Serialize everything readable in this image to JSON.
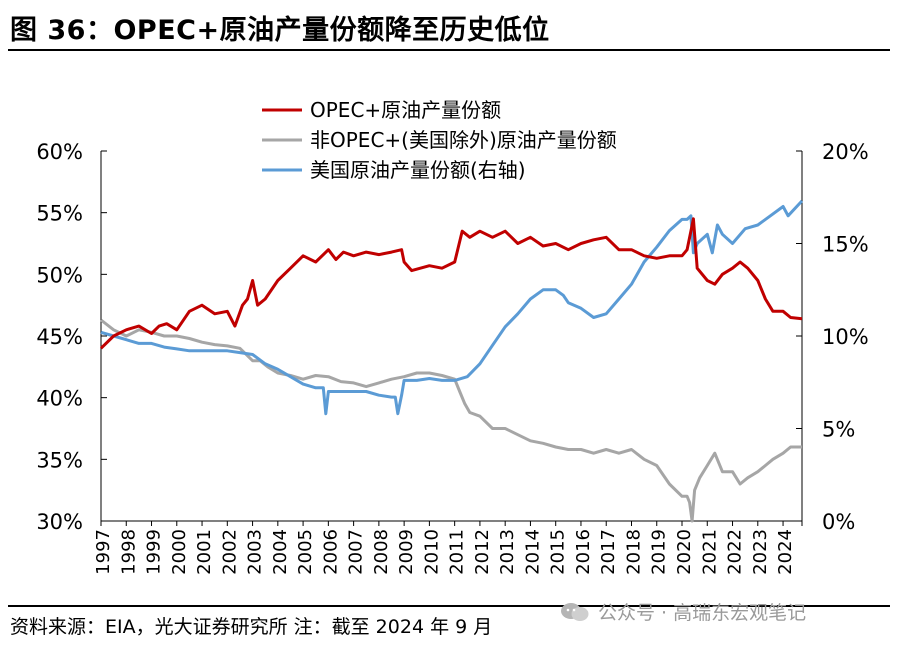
{
  "header": {
    "title": "图 36：OPEC+原油产量份额降至历史低位"
  },
  "footer": {
    "source": "资料来源：EIA，光大证券研究所 注：截至 2024 年 9 月",
    "watermark": "公众号 · 高瑞东宏观笔记"
  },
  "chart_data": {
    "type": "line",
    "title": "",
    "x": [
      "1997",
      "1998",
      "1999",
      "2000",
      "2001",
      "2002",
      "2003",
      "2004",
      "2005",
      "2006",
      "2007",
      "2008",
      "2009",
      "2010",
      "2011",
      "2012",
      "2013",
      "2014",
      "2015",
      "2016",
      "2017",
      "2018",
      "2019",
      "2020",
      "2021",
      "2022",
      "2023",
      "2024"
    ],
    "x_range": [
      1997,
      2024.75
    ],
    "ylim_left": [
      30,
      60
    ],
    "ylim_right": [
      0,
      20
    ],
    "yticks_left": [
      "60%",
      "55%",
      "50%",
      "45%",
      "40%",
      "35%",
      "30%"
    ],
    "yticks_right": [
      "20%",
      "15%",
      "10%",
      "5%",
      "0%"
    ],
    "legend": [
      "OPEC+原油产量份额",
      "非OPEC+(美国除外)原油产量份额",
      "美国原油产量份额(右轴)"
    ],
    "legend_position": "top-center",
    "colors": {
      "opec": "#c00000",
      "non_opec": "#a6a6a6",
      "us": "#5b9bd5"
    },
    "series": [
      {
        "name": "OPEC+原油产量份额",
        "axis": "left",
        "x": [
          1997,
          1997.5,
          1998,
          1998.5,
          1999,
          1999.3,
          1999.6,
          2000,
          2000.5,
          2001,
          2001.5,
          2002,
          2002.3,
          2002.6,
          2002.8,
          2003,
          2003.2,
          2003.5,
          2004,
          2004.5,
          2005,
          2005.5,
          2006,
          2006.3,
          2006.6,
          2007,
          2007.5,
          2008,
          2008.5,
          2008.9,
          2009,
          2009.3,
          2010,
          2010.5,
          2011,
          2011.3,
          2011.6,
          2012,
          2012.5,
          2013,
          2013.5,
          2014,
          2014.5,
          2015,
          2015.5,
          2016,
          2016.5,
          2017,
          2017.5,
          2018,
          2018.5,
          2019,
          2019.5,
          2020,
          2020.2,
          2020.35,
          2020.45,
          2020.6,
          2021,
          2021.3,
          2021.6,
          2022,
          2022.3,
          2022.6,
          2023,
          2023.3,
          2023.6,
          2024,
          2024.3,
          2024.75
        ],
        "values": [
          44,
          45,
          45.5,
          45.8,
          45.2,
          45.8,
          46,
          45.5,
          47,
          47.5,
          46.8,
          47,
          45.8,
          47.5,
          48,
          49.5,
          47.5,
          48,
          49.5,
          50.5,
          51.5,
          51,
          52,
          51.2,
          51.8,
          51.5,
          51.8,
          51.6,
          51.8,
          52,
          51,
          50.3,
          50.7,
          50.5,
          51,
          53.5,
          53,
          53.5,
          53,
          53.5,
          52.5,
          53,
          52.3,
          52.5,
          52,
          52.5,
          52.8,
          53,
          52,
          52,
          51.5,
          51.3,
          51.5,
          51.5,
          52,
          53.5,
          54.5,
          50.5,
          49.5,
          49.2,
          50,
          50.5,
          51,
          50.5,
          49.5,
          48,
          47,
          47,
          46.5,
          46.4
        ]
      },
      {
        "name": "非OPEC+(美国除外)原油产量份额",
        "axis": "left",
        "x": [
          1997,
          1997.5,
          1998,
          1998.5,
          1999,
          1999.5,
          2000,
          2000.5,
          2001,
          2001.5,
          2002,
          2002.5,
          2003,
          2003.3,
          2003.6,
          2004,
          2004.5,
          2005,
          2005.5,
          2006,
          2006.5,
          2007,
          2007.5,
          2008,
          2008.5,
          2009,
          2009.5,
          2010,
          2010.5,
          2011,
          2011.2,
          2011.4,
          2011.6,
          2012,
          2012.5,
          2013,
          2013.5,
          2014,
          2014.5,
          2015,
          2015.5,
          2016,
          2016.5,
          2017,
          2017.5,
          2018,
          2018.5,
          2019,
          2019.5,
          2020,
          2020.2,
          2020.3,
          2020.4,
          2020.5,
          2020.7,
          2021,
          2021.3,
          2021.6,
          2022,
          2022.3,
          2022.6,
          2023,
          2023.3,
          2023.6,
          2024,
          2024.3,
          2024.75
        ],
        "values": [
          46.3,
          45.5,
          45,
          45.5,
          45.3,
          45,
          45,
          44.8,
          44.5,
          44.3,
          44.2,
          44,
          43,
          43,
          42.5,
          42,
          41.8,
          41.5,
          41.8,
          41.7,
          41.3,
          41.2,
          40.9,
          41.2,
          41.5,
          41.7,
          42,
          42,
          41.8,
          41.5,
          40.5,
          39.5,
          38.8,
          38.5,
          37.5,
          37.5,
          37,
          36.5,
          36.3,
          36,
          35.8,
          35.8,
          35.5,
          35.8,
          35.5,
          35.8,
          35,
          34.5,
          33,
          32,
          32,
          31.5,
          30,
          32.5,
          33.5,
          34.5,
          35.5,
          34,
          34,
          33,
          33.5,
          34,
          34.5,
          35,
          35.5,
          36,
          36
        ]
      },
      {
        "name": "美国原油产量份额(右轴)",
        "axis": "right",
        "x": [
          1997,
          1997.5,
          1998,
          1998.5,
          1999,
          1999.5,
          2000,
          2000.5,
          2001,
          2001.5,
          2002,
          2002.5,
          2003,
          2003.5,
          2004,
          2004.5,
          2005,
          2005.5,
          2005.8,
          2005.9,
          2006,
          2006.5,
          2007,
          2007.5,
          2008,
          2008.5,
          2008.65,
          2008.75,
          2008.9,
          2009,
          2009.5,
          2010,
          2010.5,
          2011,
          2011.5,
          2012,
          2012.5,
          2013,
          2013.5,
          2014,
          2014.5,
          2015,
          2015.3,
          2015.5,
          2016,
          2016.5,
          2017,
          2017.5,
          2018,
          2018.5,
          2019,
          2019.5,
          2020,
          2020.2,
          2020.35,
          2020.45,
          2020.6,
          2021,
          2021.2,
          2021.4,
          2021.6,
          2022,
          2022.5,
          2023,
          2023.5,
          2024,
          2024.2,
          2024.75
        ],
        "values": [
          10.2,
          10,
          9.8,
          9.6,
          9.6,
          9.4,
          9.3,
          9.2,
          9.2,
          9.2,
          9.2,
          9.1,
          9,
          8.5,
          8.2,
          7.8,
          7.4,
          7.2,
          7.2,
          5.8,
          7,
          7,
          7,
          7,
          6.8,
          6.7,
          6.7,
          5.8,
          6.8,
          7.6,
          7.6,
          7.7,
          7.6,
          7.6,
          7.8,
          8.5,
          9.5,
          10.5,
          11.2,
          12,
          12.5,
          12.5,
          12.2,
          11.8,
          11.5,
          11,
          11.2,
          12,
          12.8,
          14,
          14.8,
          15.7,
          16.3,
          16.3,
          16.5,
          14.5,
          15,
          15.5,
          14.5,
          16,
          15.5,
          15,
          15.8,
          16,
          16.5,
          17,
          16.5,
          17.3
        ]
      }
    ]
  }
}
